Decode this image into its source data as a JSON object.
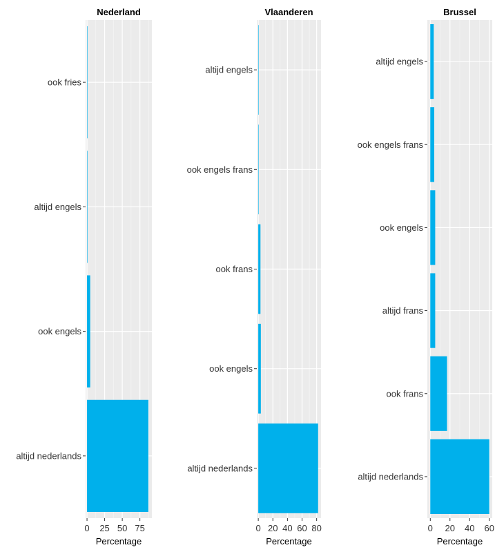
{
  "chart_data": [
    {
      "type": "bar",
      "orientation": "horizontal",
      "title": "Nederland",
      "xlabel": "Percentage",
      "ylabel": "",
      "xlim": [
        -2,
        92
      ],
      "xticks": [
        0,
        25,
        50,
        75
      ],
      "categories": [
        "altijd nederlands",
        "ook engels",
        "altijd engels",
        "ook fries"
      ],
      "values": [
        87,
        4.5,
        0.3,
        0.3
      ],
      "bar_color": "#00B0EB",
      "grid": true
    },
    {
      "type": "bar",
      "orientation": "horizontal",
      "title": "Vlaanderen",
      "xlabel": "Percentage",
      "ylabel": "",
      "xlim": [
        -2,
        86
      ],
      "xticks": [
        0,
        20,
        40,
        60,
        80
      ],
      "categories": [
        "altijd nederlands",
        "ook engels",
        "ook frans",
        "ook engels frans",
        "altijd engels"
      ],
      "values": [
        82,
        3.5,
        3,
        0.5,
        0.3
      ],
      "bar_color": "#00B0EB",
      "grid": true
    },
    {
      "type": "bar",
      "orientation": "horizontal",
      "title": "Brussel",
      "xlabel": "Percentage",
      "ylabel": "",
      "xlim": [
        -3,
        63
      ],
      "xticks": [
        0,
        20,
        40,
        60
      ],
      "categories": [
        "altijd nederlands",
        "ook frans",
        "altijd frans",
        "ook engels",
        "ook engels frans",
        "altijd engels"
      ],
      "values": [
        60,
        17,
        5,
        5,
        4,
        3.5
      ],
      "bar_color": "#00B0EB",
      "grid": true
    }
  ]
}
